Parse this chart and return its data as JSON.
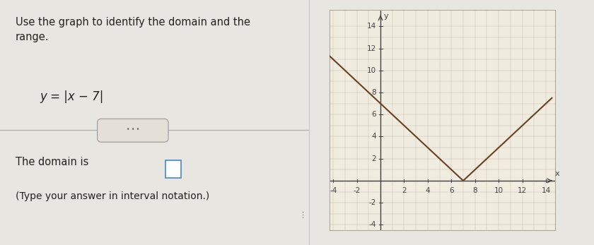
{
  "title_text": "Use the graph to identify the domain and the\nrange.",
  "equation": "y = |x − 7|",
  "domain_label": "The domain is",
  "interval_note": "(Type your answer in interval notation.)",
  "bg_color": "#e8e6e0",
  "left_bg": "#dbd8d0",
  "graph_bg": "#f0ece0",
  "grid_color": "#c8c0b0",
  "axis_color": "#444444",
  "line_color": "#6b4020",
  "border_color": "#b0a898",
  "x_min": -4,
  "x_max": 14,
  "y_min": -4,
  "y_max": 14,
  "x_ticks": [
    -4,
    -2,
    2,
    4,
    6,
    8,
    10,
    12,
    14
  ],
  "y_ticks": [
    -4,
    -2,
    2,
    4,
    6,
    8,
    10,
    12,
    14
  ],
  "vertex_x": 7,
  "x_label": "x",
  "y_label": "y",
  "tick_fontsize": 7.5,
  "text_color": "#222222"
}
